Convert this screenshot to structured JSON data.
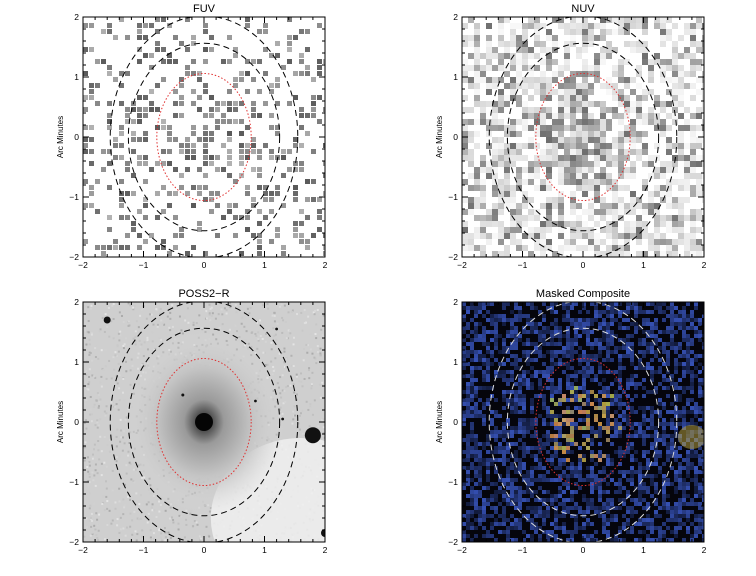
{
  "figure": {
    "panels": [
      {
        "id": "fuv",
        "title": "FUV",
        "ylabel": "Arc Minutes",
        "style": "grayscale-noise",
        "xticks": [
          "−2",
          "−1",
          "0",
          "1",
          "2"
        ],
        "yticks": [
          "2",
          "1",
          "0",
          "−1",
          "−2"
        ]
      },
      {
        "id": "nuv",
        "title": "NUV",
        "ylabel": "Arc Minutes",
        "style": "grayscale-noise",
        "xticks": [
          "−2",
          "−1",
          "0",
          "1",
          "2"
        ],
        "yticks": [
          "2",
          "1",
          "0",
          "−1",
          "−2"
        ]
      },
      {
        "id": "poss2r",
        "title": "POSS2−R",
        "ylabel": "Arc Minutes",
        "style": "optical",
        "xticks": [
          "−2",
          "−1",
          "0",
          "1",
          "2"
        ],
        "yticks": [
          "2",
          "1",
          "0",
          "−1",
          "−2"
        ]
      },
      {
        "id": "composite",
        "title": "Masked Composite",
        "ylabel": "Arc Minutes",
        "style": "color-composite",
        "xticks": [
          "−2",
          "−1",
          "0",
          "1",
          "2"
        ],
        "yticks": [
          "2",
          "1",
          "0",
          "−1",
          "−2"
        ]
      }
    ],
    "axis_range_arcmin": [
      -2,
      2
    ],
    "colors": {
      "aperture_inner": "#e03030",
      "aperture_outer_dark": "#000000",
      "aperture_outer_light": "#dddddd",
      "composite_blue": "#2c3c9a",
      "composite_yellow": "#b09a3a"
    }
  }
}
